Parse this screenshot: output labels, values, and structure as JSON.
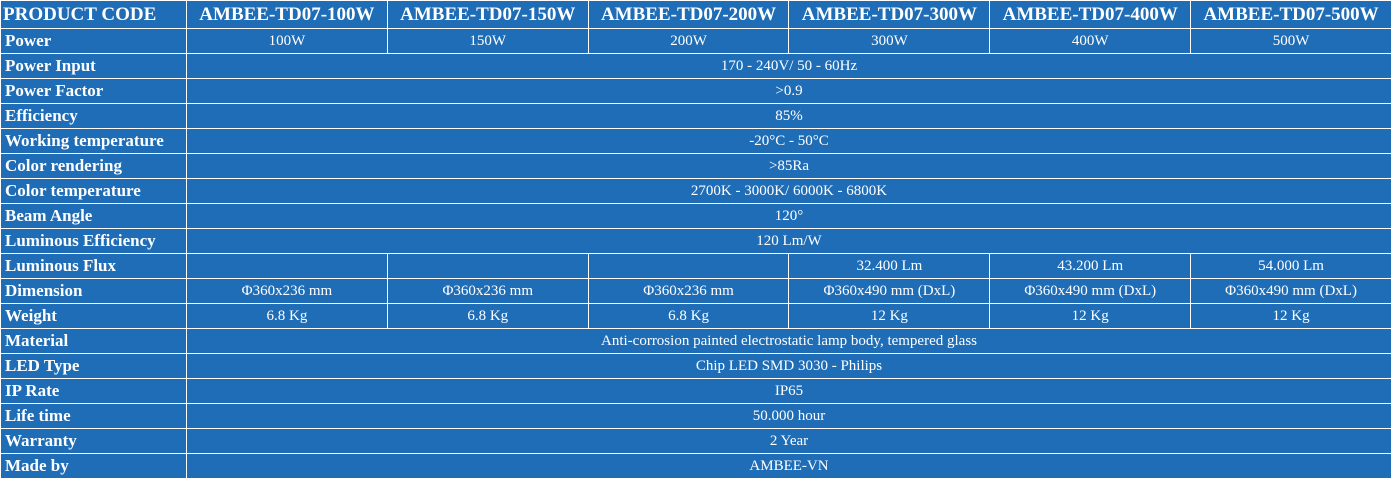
{
  "table": {
    "header": [
      "PRODUCT CODE",
      "AMBEE-TD07-100W",
      "AMBEE-TD07-150W",
      "AMBEE-TD07-200W",
      "AMBEE-TD07-300W",
      "AMBEE-TD07-400W",
      "AMBEE-TD07-500W"
    ],
    "rows": [
      {
        "label": "Power",
        "values": [
          "100W",
          "150W",
          "200W",
          "300W",
          "400W",
          "500W"
        ]
      },
      {
        "label": "Power Input",
        "value": "170 - 240V/ 50 - 60Hz"
      },
      {
        "label": "Power Factor",
        "value": ">0.9"
      },
      {
        "label": "Efficiency",
        "value": "85%"
      },
      {
        "label": "Working temperature",
        "value": "-20°C - 50°C"
      },
      {
        "label": "Color rendering",
        "value": ">85Ra"
      },
      {
        "label": "Color temperature",
        "value": "2700K - 3000K/ 6000K - 6800K"
      },
      {
        "label": "Beam Angle",
        "value": "120°"
      },
      {
        "label": "Luminous Efficiency",
        "value": "120 Lm/W"
      },
      {
        "label": "Luminous Flux",
        "values": [
          null,
          null,
          null,
          "32.400 Lm",
          "43.200 Lm",
          "54.000 Lm"
        ]
      },
      {
        "label": "Dimension",
        "values": [
          "Φ360x236 mm",
          "Φ360x236 mm",
          "Φ360x236 mm",
          "Φ360x490 mm (DxL)",
          "Φ360x490 mm (DxL)",
          "Φ360x490 mm (DxL)"
        ]
      },
      {
        "label": "Weight",
        "values": [
          "6.8 Kg",
          "6.8 Kg",
          "6.8 Kg",
          "12 Kg",
          "12 Kg",
          "12 Kg"
        ]
      },
      {
        "label": "Material",
        "value": "Anti-corrosion painted electrostatic lamp body, tempered glass"
      },
      {
        "label": "LED Type",
        "value": "Chip LED SMD 3030 -  Philips"
      },
      {
        "label": "IP Rate",
        "value": "IP65"
      },
      {
        "label": "Life time",
        "value": "50.000 hour"
      },
      {
        "label": "Warranty",
        "value": "2 Year"
      },
      {
        "label": "Made by",
        "value": "AMBEE-VN"
      }
    ]
  }
}
